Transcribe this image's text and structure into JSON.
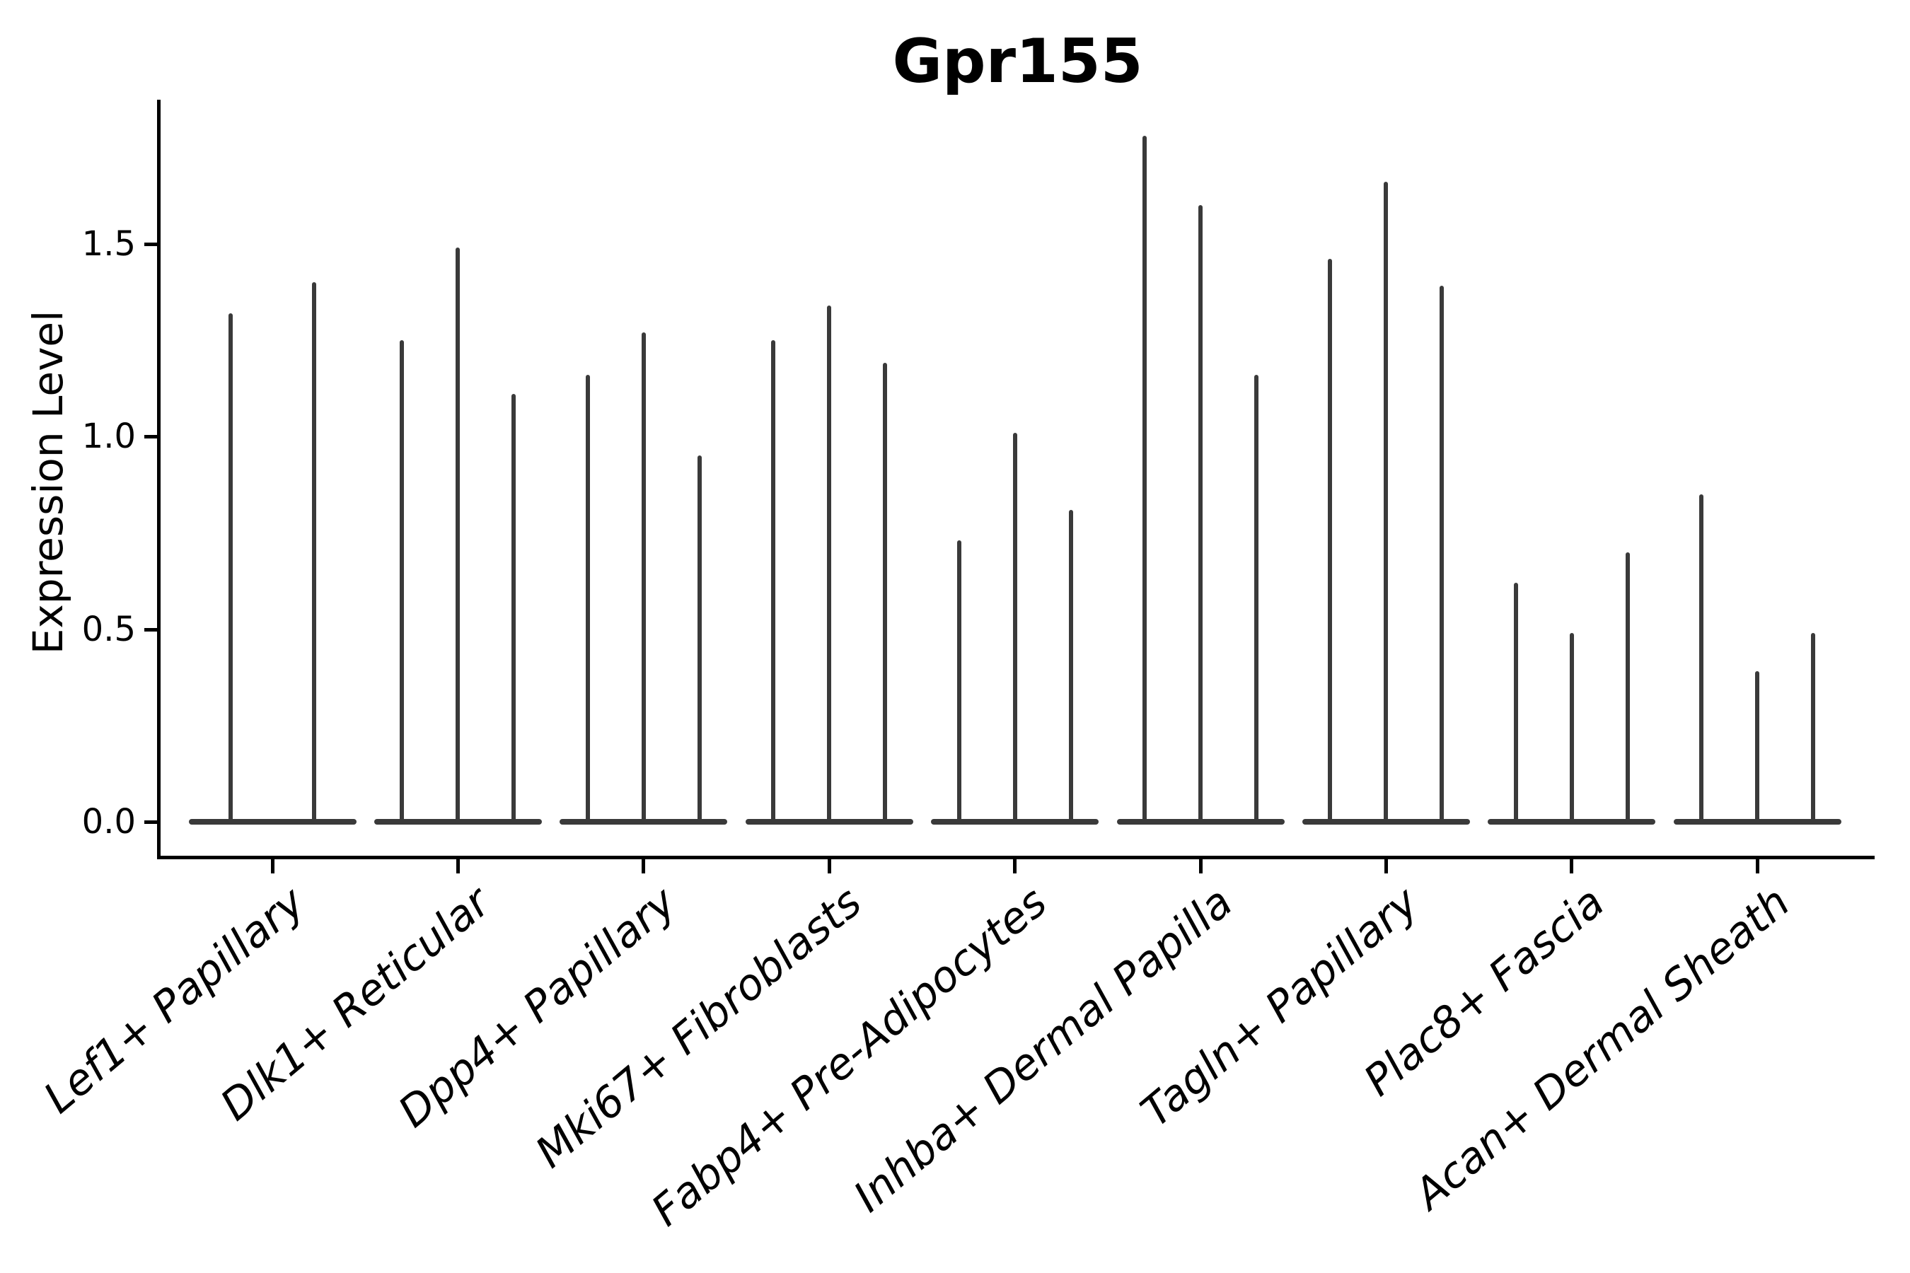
{
  "chart_data": {
    "type": "violin",
    "title": "Gpr155",
    "ylabel": "Expression Level",
    "xlabel": "",
    "ytick_labels": [
      "0.0",
      "0.5",
      "1.0",
      "1.5"
    ],
    "ytick_values": [
      0.0,
      0.5,
      1.0,
      1.5
    ],
    "ylim": [
      -0.09,
      1.87
    ],
    "grid": false,
    "legend_position": "none",
    "categories": [
      "Lef1+ Papillary",
      "Dlk1+ Reticular",
      "Dpp4+ Papillary",
      "Mki67+ Fibroblasts",
      "Fabp4+ Pre-Adipocytes",
      "Inhba+ Dermal Papilla",
      "Tagln+ Papillary",
      "Plac8+ Fascia",
      "Acan+ Dermal Sheath"
    ],
    "violins": [
      {
        "category": "Lef1+ Papillary",
        "spike_max_values": [
          1.32,
          1.4
        ]
      },
      {
        "category": "Dlk1+ Reticular",
        "spike_max_values": [
          1.25,
          1.49,
          1.11
        ]
      },
      {
        "category": "Dpp4+ Papillary",
        "spike_max_values": [
          1.16,
          1.27,
          0.95
        ]
      },
      {
        "category": "Mki67+ Fibroblasts",
        "spike_max_values": [
          1.25,
          1.34,
          1.19
        ]
      },
      {
        "category": "Fabp4+ Pre-Adipocytes",
        "spike_max_values": [
          0.73,
          1.01,
          0.81
        ]
      },
      {
        "category": "Inhba+ Dermal Papilla",
        "spike_max_values": [
          1.78,
          1.6,
          1.16
        ]
      },
      {
        "category": "Tagln+ Papillary",
        "spike_max_values": [
          1.46,
          1.66,
          1.39
        ]
      },
      {
        "category": "Plac8+ Fascia",
        "spike_max_values": [
          0.62,
          0.49,
          0.7
        ]
      },
      {
        "category": "Acan+ Dermal Sheath",
        "spike_max_values": [
          0.85,
          0.39,
          0.49
        ]
      }
    ],
    "colors": {
      "violin": "#3a3a3a",
      "axis": "#000000",
      "text": "#000000",
      "background": "#ffffff"
    }
  }
}
